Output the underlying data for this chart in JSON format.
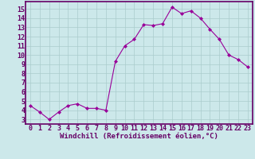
{
  "x": [
    0,
    1,
    2,
    3,
    4,
    5,
    6,
    7,
    8,
    9,
    10,
    11,
    12,
    13,
    14,
    15,
    16,
    17,
    18,
    19,
    20,
    21,
    22,
    23
  ],
  "y": [
    4.5,
    3.8,
    3.0,
    3.8,
    4.5,
    4.7,
    4.2,
    4.2,
    4.0,
    9.3,
    11.0,
    11.7,
    13.3,
    13.2,
    13.4,
    15.2,
    14.5,
    14.8,
    14.0,
    12.8,
    11.7,
    10.0,
    9.5,
    8.7
  ],
  "line_color": "#990099",
  "marker": "D",
  "marker_size": 2,
  "bg_color": "#cce8ea",
  "grid_color": "#aacccc",
  "axis_bar_color": "#660066",
  "xlabel": "Windchill (Refroidissement éolien,°C)",
  "xlabel_color": "#660066",
  "xlabel_fontsize": 6.5,
  "ylabel_ticks": [
    3,
    4,
    5,
    6,
    7,
    8,
    9,
    10,
    11,
    12,
    13,
    14,
    15
  ],
  "ylim": [
    2.5,
    15.8
  ],
  "xlim": [
    -0.5,
    23.5
  ],
  "tick_fontsize": 6,
  "tick_color": "#660066"
}
